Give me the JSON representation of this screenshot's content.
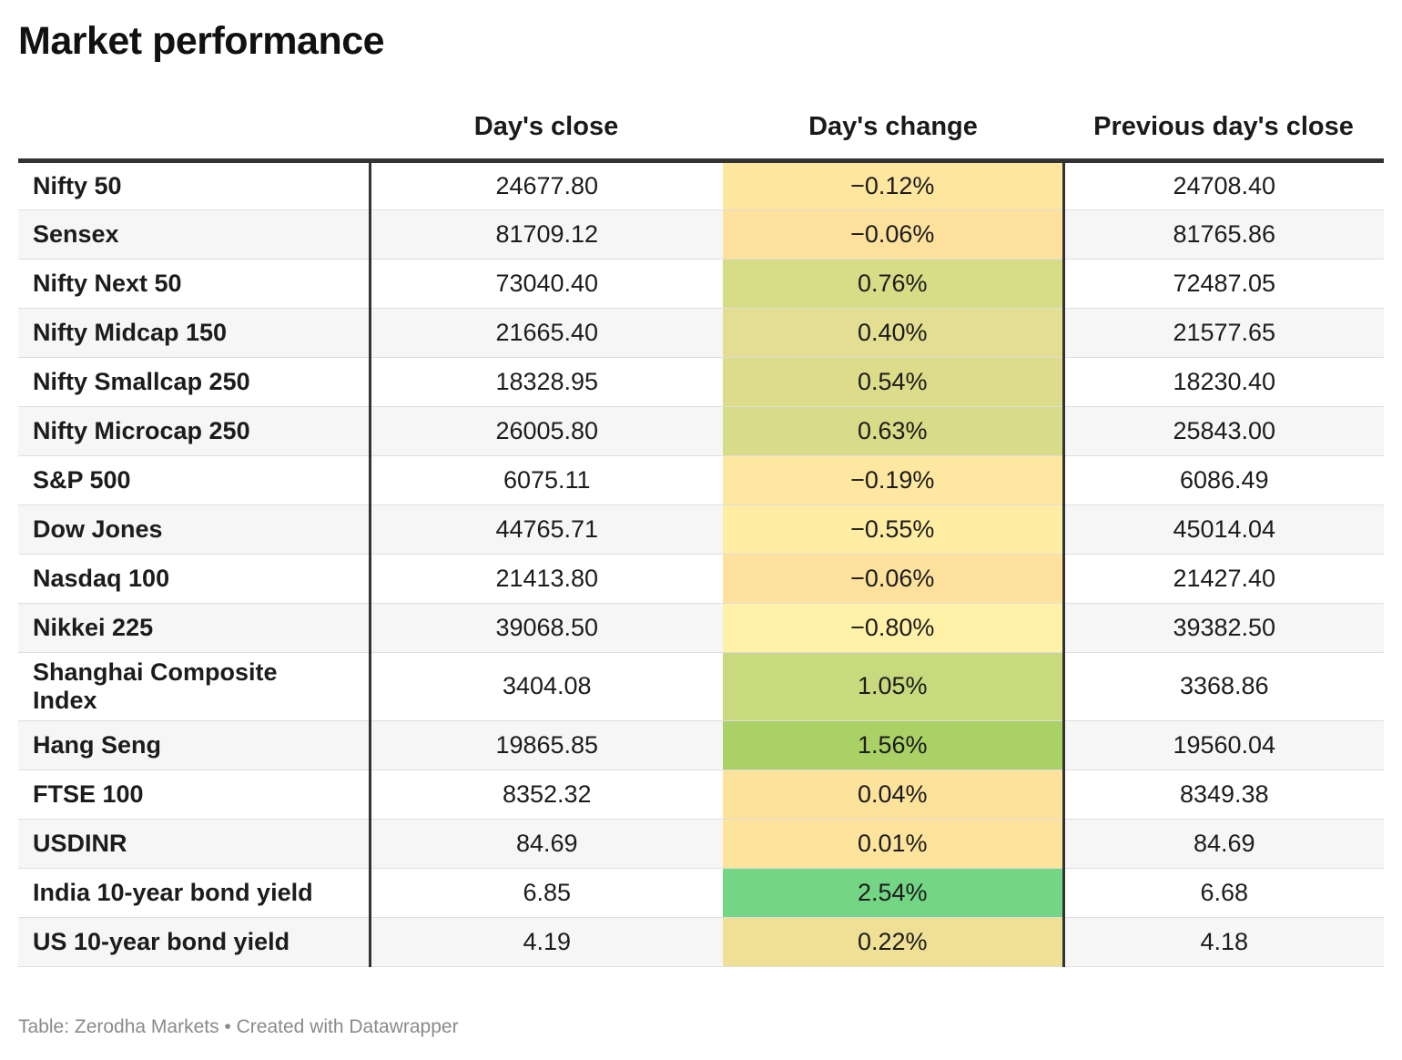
{
  "title": "Market performance",
  "columns": [
    "",
    "Day's close",
    "Day's change",
    "Previous day's close"
  ],
  "footer": "Table: Zerodha Markets • Created with Datawrapper",
  "chart_data": {
    "type": "table",
    "title": "Market performance",
    "columns": [
      "",
      "Day's close",
      "Day's change",
      "Previous day's close"
    ],
    "rows": [
      {
        "name": "Nifty 50",
        "close": "24677.80",
        "change": "−0.12%",
        "change_value": -0.12,
        "prev_close": "24708.40",
        "change_color": "#fee69f"
      },
      {
        "name": "Sensex",
        "close": "81709.12",
        "change": "−0.06%",
        "change_value": -0.06,
        "prev_close": "81765.86",
        "change_color": "#fde19d"
      },
      {
        "name": "Nifty Next 50",
        "close": "73040.40",
        "change": "0.76%",
        "change_value": 0.76,
        "prev_close": "72487.05",
        "change_color": "#d7dd86"
      },
      {
        "name": "Nifty Midcap 150",
        "close": "21665.40",
        "change": "0.40%",
        "change_value": 0.4,
        "prev_close": "21577.65",
        "change_color": "#e3de92"
      },
      {
        "name": "Nifty Smallcap 250",
        "close": "18328.95",
        "change": "0.54%",
        "change_value": 0.54,
        "prev_close": "18230.40",
        "change_color": "#dcdc8b"
      },
      {
        "name": "Nifty Microcap 250",
        "close": "26005.80",
        "change": "0.63%",
        "change_value": 0.63,
        "prev_close": "25843.00",
        "change_color": "#d8db88"
      },
      {
        "name": "S&P 500",
        "close": "6075.11",
        "change": "−0.19%",
        "change_value": -0.19,
        "prev_close": "6086.49",
        "change_color": "#fee8a1"
      },
      {
        "name": "Dow Jones",
        "close": "44765.71",
        "change": "−0.55%",
        "change_value": -0.55,
        "prev_close": "45014.04",
        "change_color": "#ffeda4"
      },
      {
        "name": "Nasdaq 100",
        "close": "21413.80",
        "change": "−0.06%",
        "change_value": -0.06,
        "prev_close": "21427.40",
        "change_color": "#fde19d"
      },
      {
        "name": "Nikkei 225",
        "close": "39068.50",
        "change": "−0.80%",
        "change_value": -0.8,
        "prev_close": "39382.50",
        "change_color": "#fff1a7"
      },
      {
        "name": "Shanghai Composite Index",
        "close": "3404.08",
        "change": "1.05%",
        "change_value": 1.05,
        "prev_close": "3368.86",
        "change_color": "#c8da7d"
      },
      {
        "name": "Hang Seng",
        "close": "19865.85",
        "change": "1.56%",
        "change_value": 1.56,
        "prev_close": "19560.04",
        "change_color": "#aad166"
      },
      {
        "name": "FTSE 100",
        "close": "8352.32",
        "change": "0.04%",
        "change_value": 0.04,
        "prev_close": "8349.38",
        "change_color": "#fce29b"
      },
      {
        "name": "USDINR",
        "close": "84.69",
        "change": "0.01%",
        "change_value": 0.01,
        "prev_close": "84.69",
        "change_color": "#fde39c"
      },
      {
        "name": "India 10-year bond yield",
        "close": "6.85",
        "change": "2.54%",
        "change_value": 2.54,
        "prev_close": "6.68",
        "change_color": "#74d685"
      },
      {
        "name": "US 10-year bond yield",
        "close": "4.19",
        "change": "0.22%",
        "change_value": 0.22,
        "prev_close": "4.18",
        "change_color": "#efe095"
      }
    ]
  }
}
